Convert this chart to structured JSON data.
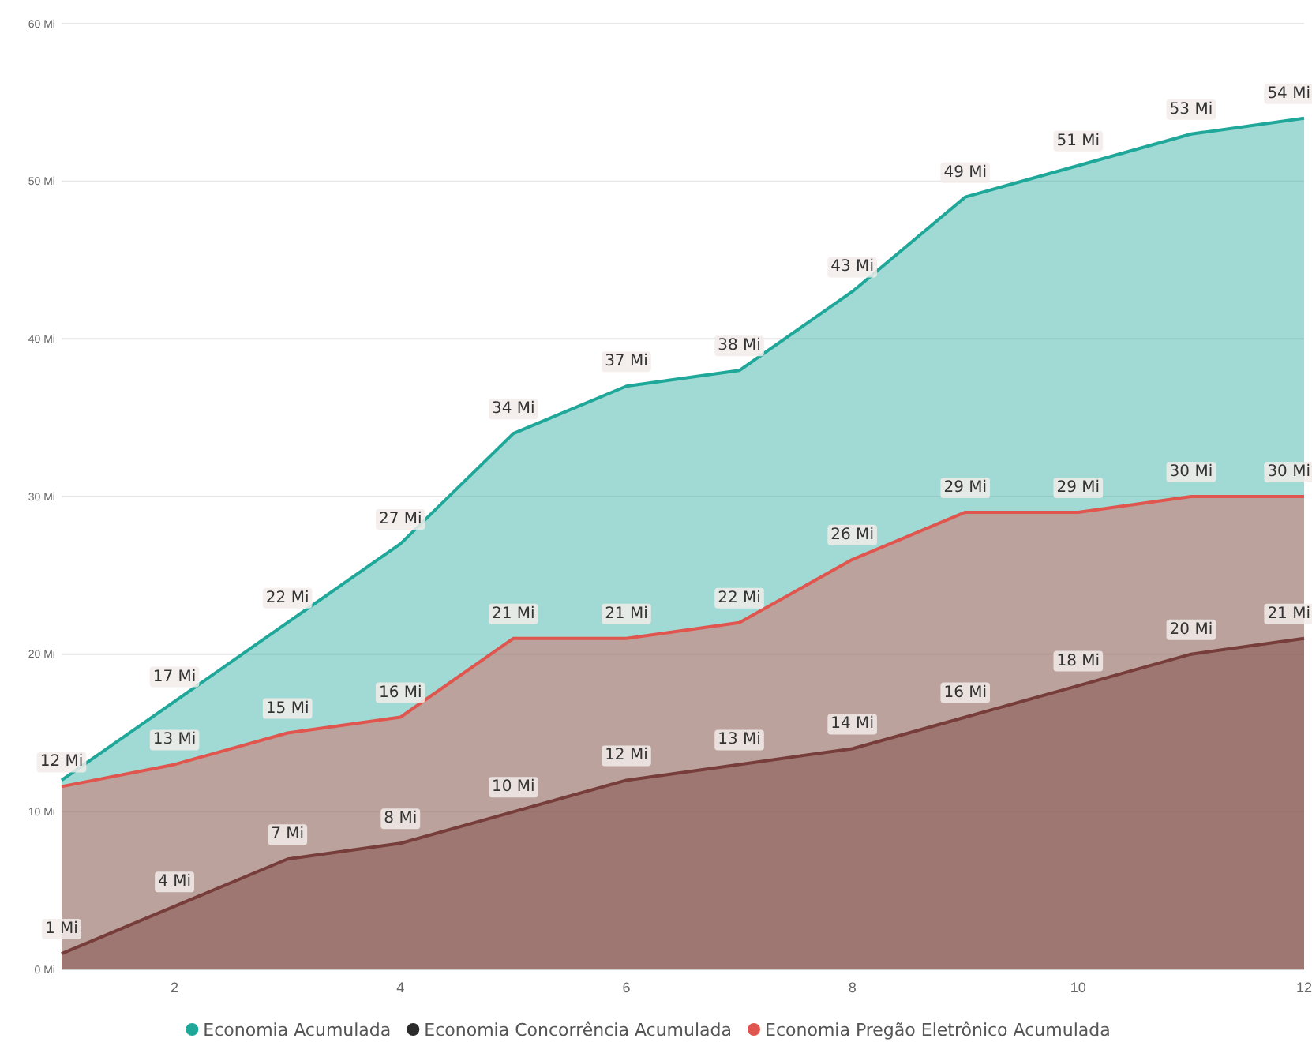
{
  "chart_data": {
    "type": "area",
    "x": [
      1,
      2,
      3,
      4,
      5,
      6,
      7,
      8,
      9,
      10,
      11,
      12
    ],
    "xlim": [
      1,
      12
    ],
    "xticks": [
      2,
      4,
      6,
      8,
      10,
      12
    ],
    "ylim": [
      0,
      60
    ],
    "yticks": [
      {
        "value": 0,
        "label": "0 Mi"
      },
      {
        "value": 10,
        "label": "10 Mi"
      },
      {
        "value": 20,
        "label": "20 Mi"
      },
      {
        "value": 30,
        "label": "30 Mi"
      },
      {
        "value": 40,
        "label": "40 Mi"
      },
      {
        "value": 50,
        "label": "50 Mi"
      },
      {
        "value": 60,
        "label": "60 Mi"
      }
    ],
    "grid": "y",
    "legend": "bottom",
    "marker": "none",
    "series": [
      {
        "name": "Economia Acumulada",
        "color": "#1fa899",
        "values": [
          12,
          17,
          22,
          27,
          34,
          37,
          38,
          43,
          49,
          51,
          53,
          54
        ],
        "value_labels": [
          null,
          "17 Mi",
          "22 Mi",
          "27 Mi",
          "34 Mi",
          "37 Mi",
          "38 Mi",
          "43 Mi",
          "49 Mi",
          "51 Mi",
          "53 Mi",
          "54 Mi"
        ]
      },
      {
        "name": "Economia Concorrência Acumulada",
        "color": "#2b2b2b",
        "values": [
          1,
          4,
          7,
          8,
          10,
          12,
          13,
          14,
          16,
          18,
          20,
          21
        ],
        "value_labels": [
          "1 Mi",
          "4 Mi",
          "7 Mi",
          "8 Mi",
          "10 Mi",
          "12 Mi",
          "13 Mi",
          "14 Mi",
          "16 Mi",
          "18 Mi",
          "20 Mi",
          "21 Mi"
        ]
      },
      {
        "name": "Economia Pregão Eletrônico Acumulada",
        "color": "#e0564e",
        "values": [
          11.6,
          13,
          15,
          16,
          21,
          21,
          22,
          26,
          29,
          29,
          30,
          30
        ],
        "value_labels": [
          "12 Mi",
          "13 Mi",
          "15 Mi",
          "16 Mi",
          "21 Mi",
          "21 Mi",
          "22 Mi",
          "26 Mi",
          "29 Mi",
          "29 Mi",
          "30 Mi",
          "30 Mi"
        ]
      }
    ]
  }
}
